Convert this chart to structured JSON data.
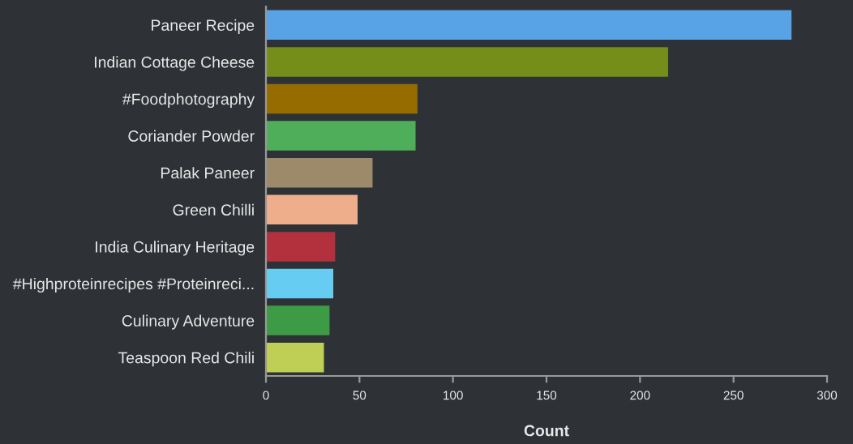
{
  "chart_data": {
    "type": "bar",
    "orientation": "horizontal",
    "xlabel": "Count",
    "categories": [
      "Paneer Recipe",
      "Indian Cottage Cheese",
      "#Foodphotography",
      "Coriander Powder",
      "Palak Paneer",
      "Green Chilli",
      "India Culinary Heritage",
      "#Highproteinrecipes #Proteinreci...",
      "Culinary Adventure",
      "Teaspoon Red Chili"
    ],
    "values": [
      281,
      215,
      81,
      80,
      57,
      49,
      37,
      36,
      34,
      31
    ],
    "colors": [
      "#58a3e6",
      "#758e1a",
      "#966c00",
      "#4fae5a",
      "#9c8a6b",
      "#eeae8c",
      "#b3313d",
      "#66ccf2",
      "#3c9b44",
      "#bfcf55"
    ],
    "xlim": [
      0,
      300
    ],
    "xticks": [
      0,
      50,
      100,
      150,
      200,
      250,
      300
    ],
    "grid": false,
    "legend": false
  }
}
